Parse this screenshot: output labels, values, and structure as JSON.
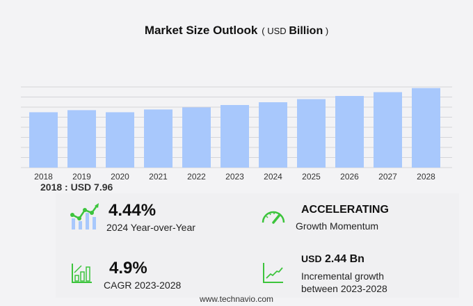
{
  "chart_data": {
    "type": "bar",
    "title": "Market Size Outlook",
    "unit_prefix": "USD",
    "unit": "Billion",
    "categories": [
      "2018",
      "2019",
      "2020",
      "2021",
      "2022",
      "2023",
      "2024",
      "2025",
      "2026",
      "2027",
      "2028"
    ],
    "values": [
      7.96,
      8.26,
      7.96,
      8.36,
      8.66,
      9.0,
      9.4,
      9.85,
      10.3,
      10.85,
      11.44
    ],
    "ylim": [
      0,
      11.6
    ],
    "grid": true,
    "bar_color": "#a8c8fc",
    "first_value_label": "2018 : USD  7.96"
  },
  "stats": {
    "yoy": {
      "value": "4.44%",
      "label": "2024 Year-over-Year"
    },
    "momentum": {
      "value": "ACCELERATING",
      "label": "Growth Momentum"
    },
    "cagr": {
      "value": "4.9%",
      "label": "CAGR 2023-2028"
    },
    "incremental": {
      "prefix": "USD",
      "value": "2.44 Bn",
      "label1": "Incremental growth",
      "label2": "between 2023-2028"
    }
  },
  "colors": {
    "accent": "#3cc43c",
    "bar": "#a8c8fc"
  },
  "footer": "www.technavio.com"
}
